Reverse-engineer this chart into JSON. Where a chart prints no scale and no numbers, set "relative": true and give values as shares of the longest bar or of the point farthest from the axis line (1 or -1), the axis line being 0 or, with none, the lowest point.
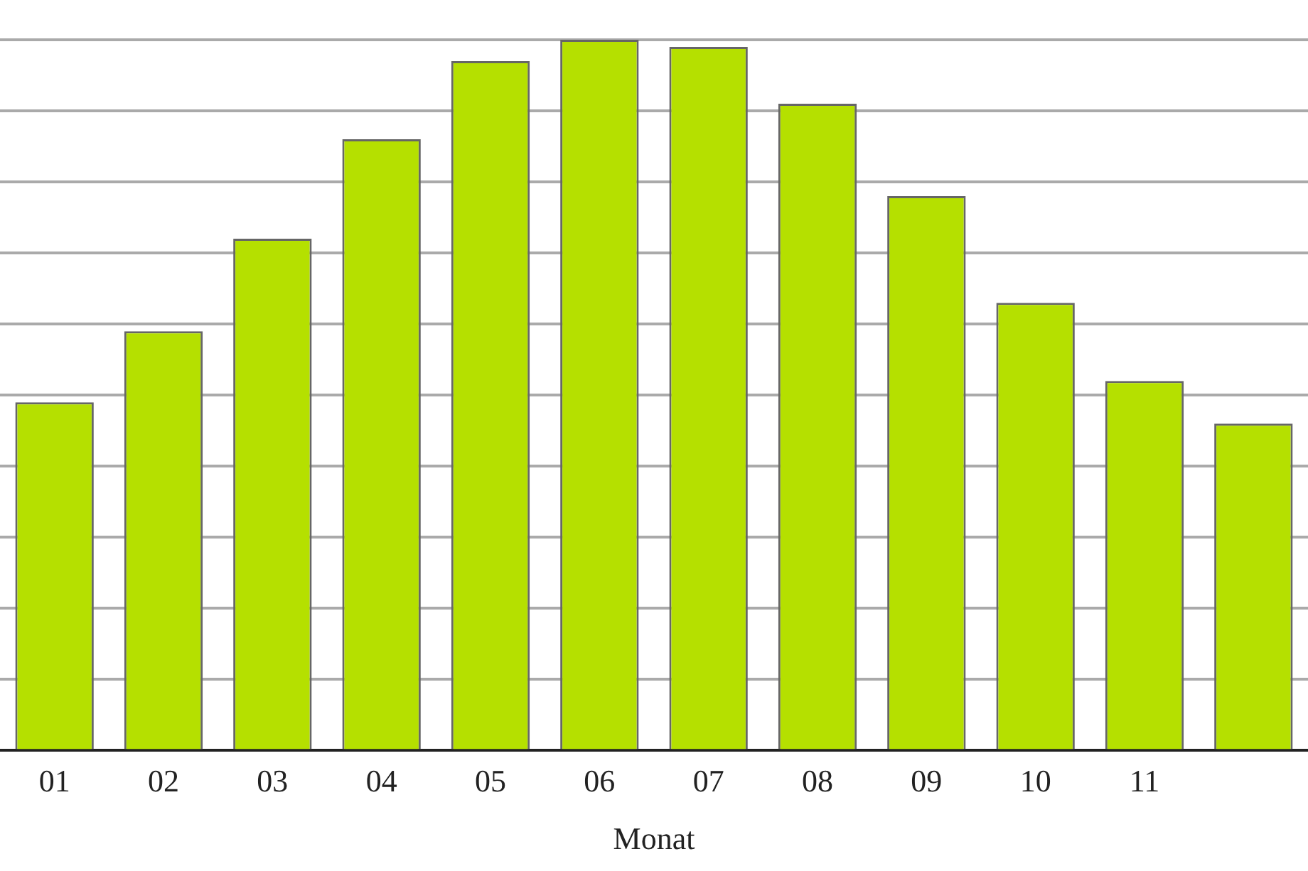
{
  "chart_data": {
    "type": "bar",
    "xlabel": "Monat",
    "categories": [
      "01",
      "02",
      "03",
      "04",
      "05",
      "06",
      "07",
      "08",
      "09",
      "10",
      "11",
      null
    ],
    "values": [
      0.49,
      0.59,
      0.72,
      0.86,
      0.97,
      1,
      0.99,
      0.91,
      0.78,
      0.63,
      0.52,
      0.46
    ],
    "color": "#b5e000",
    "relative": true,
    "grid": true,
    "legend": false
  }
}
